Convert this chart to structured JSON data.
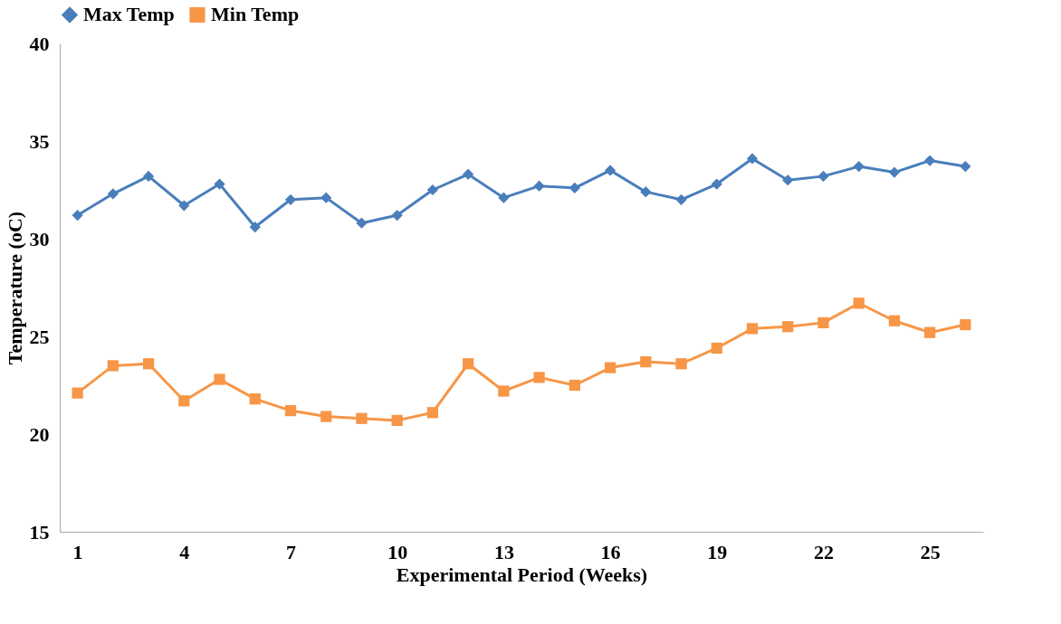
{
  "chart_data": {
    "type": "line",
    "xlabel": "Experimental Period (Weeks)",
    "ylabel": "Temperature (oC)",
    "x": [
      1,
      2,
      3,
      4,
      5,
      6,
      7,
      8,
      9,
      10,
      11,
      12,
      13,
      14,
      15,
      16,
      17,
      18,
      19,
      20,
      21,
      22,
      23,
      24,
      25,
      26
    ],
    "series": [
      {
        "name": "Max Temp",
        "color": "#4a7ebb",
        "marker": "diamond",
        "values": [
          31.2,
          32.3,
          33.2,
          31.7,
          32.8,
          30.6,
          32.0,
          32.1,
          30.8,
          31.2,
          32.5,
          33.3,
          32.1,
          32.7,
          32.6,
          33.5,
          32.4,
          32.0,
          32.8,
          34.1,
          33.0,
          33.2,
          33.7,
          33.4,
          34.0,
          33.7
        ]
      },
      {
        "name": "Min Temp",
        "color": "#f79646",
        "marker": "square",
        "values": [
          22.1,
          23.5,
          23.6,
          21.7,
          22.8,
          21.8,
          21.2,
          20.9,
          20.8,
          20.7,
          21.1,
          23.6,
          22.2,
          22.9,
          22.5,
          23.4,
          23.7,
          23.6,
          24.4,
          25.4,
          25.5,
          25.7,
          26.7,
          25.8,
          25.2,
          25.6
        ]
      }
    ],
    "xlim": [
      0.5,
      26.5
    ],
    "xticks": [
      1,
      4,
      7,
      10,
      13,
      16,
      19,
      22,
      25
    ],
    "ylim": [
      15,
      40
    ],
    "yticks": [
      15,
      20,
      25,
      30,
      35,
      40
    ],
    "grid": false,
    "legend": "top",
    "line_style": "solid"
  }
}
